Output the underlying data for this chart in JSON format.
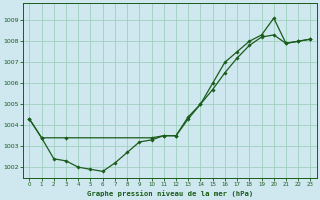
{
  "title": "Graphe pression niveau de la mer (hPa)",
  "bg_color": "#cfe8f0",
  "grid_color": "#9ecfbe",
  "line_color": "#1a5c1a",
  "marker_color": "#1a5c1a",
  "xlim": [
    -0.5,
    23.5
  ],
  "ylim": [
    1001.5,
    1009.8
  ],
  "yticks": [
    1002,
    1003,
    1004,
    1005,
    1006,
    1007,
    1008,
    1009
  ],
  "xticks": [
    0,
    1,
    2,
    3,
    4,
    5,
    6,
    7,
    8,
    9,
    10,
    11,
    12,
    13,
    14,
    15,
    16,
    17,
    18,
    19,
    20,
    21,
    22,
    23
  ],
  "series1_x": [
    0,
    1,
    2,
    3,
    4,
    5,
    6,
    7,
    8,
    9,
    10,
    11,
    12,
    13,
    14,
    15,
    16,
    17,
    18,
    19,
    20,
    21,
    22,
    23
  ],
  "series1_y": [
    1004.3,
    1003.4,
    1002.4,
    1002.3,
    1002.0,
    1001.9,
    1001.8,
    1002.2,
    1002.7,
    1003.2,
    1003.3,
    1003.5,
    1003.5,
    1004.4,
    1005.0,
    1006.0,
    1007.0,
    1007.5,
    1008.0,
    1008.3,
    1009.1,
    1007.9,
    1008.0,
    1008.1
  ],
  "series2_x": [
    0,
    1,
    3,
    10,
    11,
    12,
    13,
    14,
    15,
    16,
    17,
    18,
    19,
    20,
    21,
    22,
    23
  ],
  "series2_y": [
    1004.3,
    1003.4,
    1003.4,
    1003.4,
    1003.5,
    1003.5,
    1004.3,
    1005.0,
    1005.7,
    1006.5,
    1007.2,
    1007.8,
    1008.2,
    1008.3,
    1007.9,
    1008.0,
    1008.1
  ]
}
